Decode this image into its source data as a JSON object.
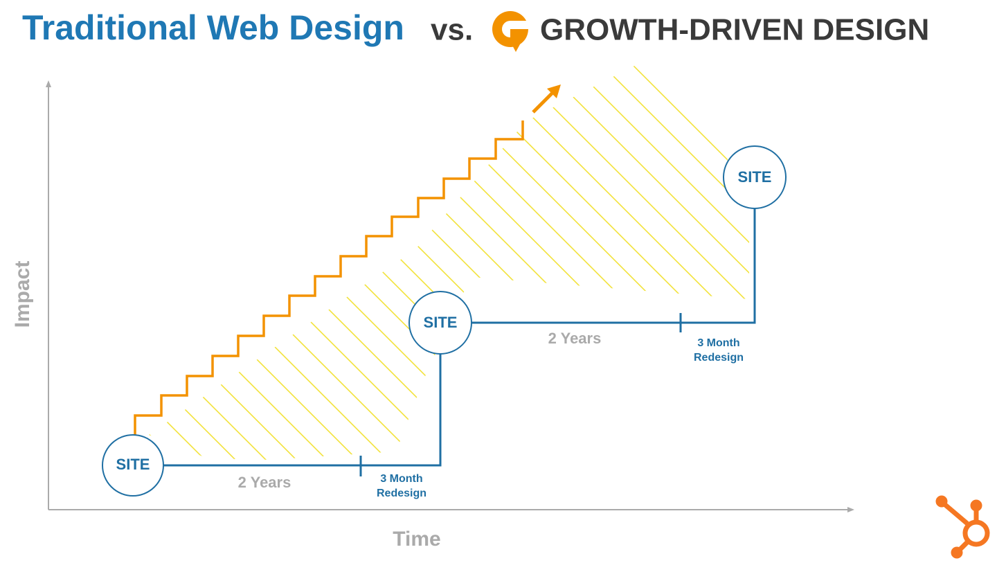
{
  "header": {
    "title": "Traditional Web Design",
    "vs": "vs.",
    "brand": "GROWTH-DRIVEN DESIGN"
  },
  "axes": {
    "y": "Impact",
    "x": "Time"
  },
  "sites": [
    {
      "label": "SITE"
    },
    {
      "label": "SITE"
    },
    {
      "label": "SITE"
    }
  ],
  "phases": [
    {
      "duration": "2 Years",
      "redesign": [
        "3 Month",
        "Redesign"
      ]
    },
    {
      "duration": "2 Years",
      "redesign": [
        "3 Month",
        "Redesign"
      ]
    }
  ]
}
